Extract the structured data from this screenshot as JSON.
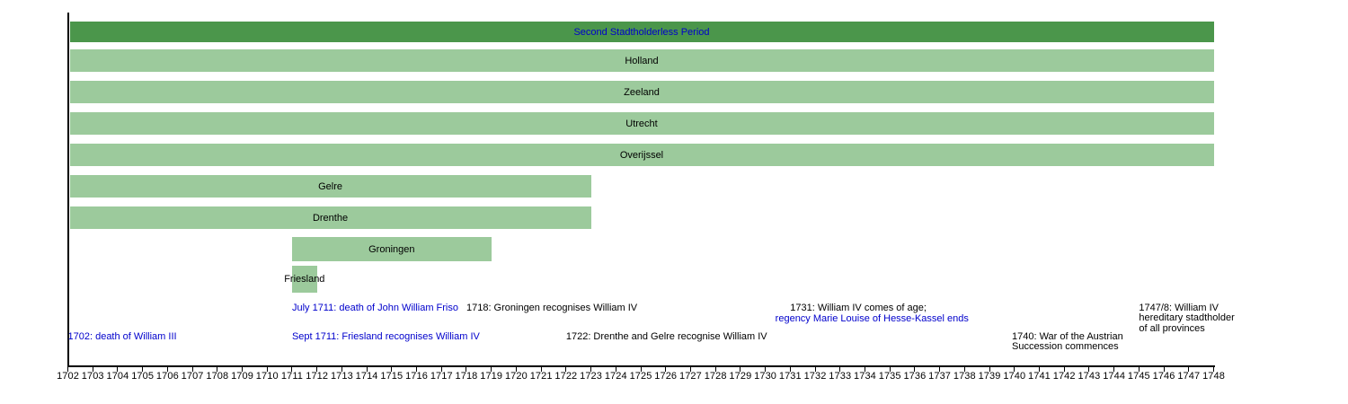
{
  "colors": {
    "background": "#ffffff",
    "period_bar": "#4b964b",
    "province_bar": "#9cca9c",
    "link_text": "#0000cc",
    "text": "#000000",
    "axis": "#000000"
  },
  "chart_data": {
    "type": "bar",
    "variant": "timeline",
    "title": "Second Stadtholderless Period",
    "x_axis": {
      "min": 1702,
      "max": 1748,
      "tick_step": 1,
      "tick_labels": [
        "1702",
        "1703",
        "1704",
        "1705",
        "1706",
        "1707",
        "1708",
        "1709",
        "1710",
        "1711",
        "1712",
        "1713",
        "1714",
        "1715",
        "1716",
        "1717",
        "1718",
        "1719",
        "1720",
        "1721",
        "1722",
        "1723",
        "1724",
        "1725",
        "1726",
        "1727",
        "1728",
        "1729",
        "1730",
        "1731",
        "1732",
        "1733",
        "1734",
        "1735",
        "1736",
        "1737",
        "1738",
        "1739",
        "1740",
        "1741",
        "1742",
        "1743",
        "1744",
        "1745",
        "1746",
        "1747",
        "1748"
      ]
    },
    "bars": [
      {
        "label": "Second Stadtholderless Period",
        "start": 1702,
        "end": 1748,
        "style": "period",
        "label_color": "blue",
        "link": true
      },
      {
        "label": "Holland",
        "start": 1702,
        "end": 1748,
        "style": "province",
        "label_color": "black",
        "link": false
      },
      {
        "label": "Zeeland",
        "start": 1702,
        "end": 1748,
        "style": "province",
        "label_color": "black",
        "link": false
      },
      {
        "label": "Utrecht",
        "start": 1702,
        "end": 1748,
        "style": "province",
        "label_color": "black",
        "link": false
      },
      {
        "label": "Overijssel",
        "start": 1702,
        "end": 1748,
        "style": "province",
        "label_color": "black",
        "link": false
      },
      {
        "label": "Gelre",
        "start": 1702,
        "end": 1723,
        "style": "province",
        "label_color": "black",
        "link": false
      },
      {
        "label": "Drenthe",
        "start": 1702,
        "end": 1723,
        "style": "province",
        "label_color": "black",
        "link": false
      },
      {
        "label": "Groningen",
        "start": 1711,
        "end": 1719,
        "style": "province",
        "label_color": "black",
        "link": false
      },
      {
        "label": "Friesland",
        "start": 1711,
        "end": 1712,
        "style": "province",
        "label_color": "black",
        "link": false
      }
    ],
    "annotations": [
      {
        "lines": [
          "July 1711: death of John William Friso"
        ],
        "color": "blue",
        "anchor_year": 1711,
        "row": "top",
        "link": true
      },
      {
        "lines": [
          "1718: Groningen recognises William IV"
        ],
        "color": "black",
        "anchor_year": 1718,
        "row": "top",
        "link": false
      },
      {
        "lines": [
          "1731: William IV comes of age;"
        ],
        "color": "black",
        "anchor_year": 1731,
        "row": "top",
        "link": false
      },
      {
        "lines": [
          "regency Marie Louise of Hesse-Kassel ends"
        ],
        "color": "blue",
        "anchor_year": 1730.4,
        "row": "top2",
        "link": true
      },
      {
        "lines": [
          "1747/8: William IV",
          "hereditary stadtholder",
          "of all provinces"
        ],
        "color": "black",
        "anchor_year": 1745,
        "row": "top",
        "link": false
      },
      {
        "lines": [
          "1702: death of William III"
        ],
        "color": "blue",
        "anchor_year": 1702,
        "row": "bottom",
        "link": true
      },
      {
        "lines": [
          "Sept 1711: Friesland recognises William IV"
        ],
        "color": "blue",
        "anchor_year": 1711,
        "row": "bottom",
        "link": true
      },
      {
        "lines": [
          "1722: Drenthe and Gelre recognise William IV"
        ],
        "color": "black",
        "anchor_year": 1722,
        "row": "bottom",
        "link": false
      },
      {
        "lines": [
          "1740: War of the Austrian",
          "Succession commences"
        ],
        "color": "black",
        "anchor_year": 1739.9,
        "row": "bottom",
        "link": false
      }
    ]
  }
}
